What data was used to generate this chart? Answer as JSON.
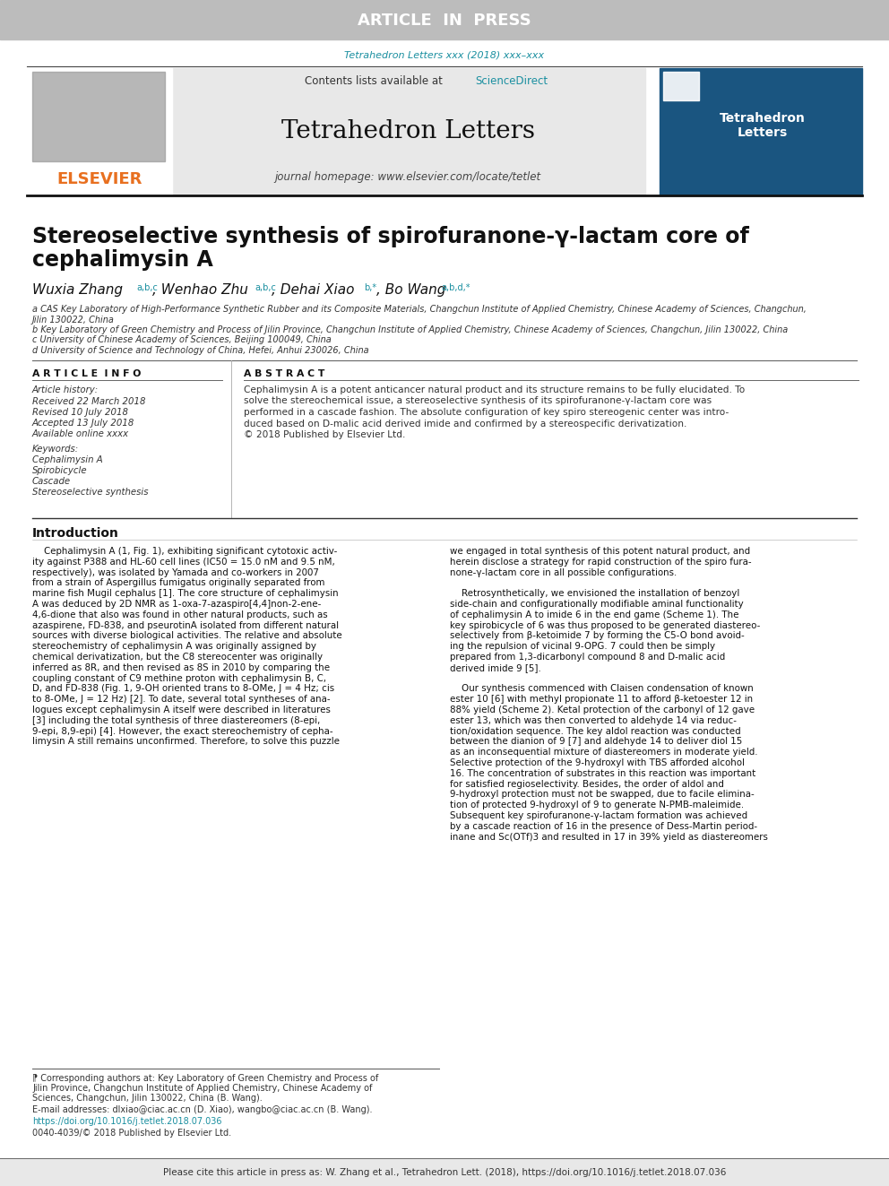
{
  "article_in_press_bg": "#c8c8c8",
  "article_in_press_text": "ARTICLE  IN  PRESS",
  "article_in_press_color": "#ffffff",
  "journal_ref_color": "#1a8fa0",
  "journal_ref": "Tetrahedron Letters xxx (2018) xxx–xxx",
  "header_bg": "#e8e8e8",
  "journal_title": "Tetrahedron Letters",
  "contents_text": "Contents lists available at ",
  "sciencedirect_text": "ScienceDirect",
  "sciencedirect_color": "#e87020",
  "homepage_text": "journal homepage: www.elsevier.com/locate/tetlet",
  "elsevier_color": "#e87020",
  "paper_title_line1": "Stereoselective synthesis of spirofuranone-γ-lactam core of",
  "paper_title_line2": "cephalimysin A",
  "author1_name": "Wuxia Zhang",
  "author1_super": "a,b,c",
  "author2_name": ", Wenhao Zhu",
  "author2_super": "a,b,c",
  "author3_name": ", Dehai Xiao",
  "author3_super": "b,*",
  "author4_name": ", Bo Wang",
  "author4_super": "a,b,d,*",
  "affiliation_a": "a CAS Key Laboratory of High-Performance Synthetic Rubber and its Composite Materials, Changchun Institute of Applied Chemistry, Chinese Academy of Sciences, Changchun,",
  "affiliation_a2": "Jilin 130022, China",
  "affiliation_b": "b Key Laboratory of Green Chemistry and Process of Jilin Province, Changchun Institute of Applied Chemistry, Chinese Academy of Sciences, Changchun, Jilin 130022, China",
  "affiliation_c": "c University of Chinese Academy of Sciences, Beijing 100049, China",
  "affiliation_d": "d University of Science and Technology of China, Hefei, Anhui 230026, China",
  "article_info_title": "A R T I C L E  I N F O",
  "abstract_title": "A B S T R A C T",
  "article_history": "Article history:",
  "received": "Received 22 March 2018",
  "revised": "Revised 10 July 2018",
  "accepted": "Accepted 13 July 2018",
  "available": "Available online xxxx",
  "keywords_title": "Keywords:",
  "keyword1": "Cephalimysin A",
  "keyword2": "Spirobicycle",
  "keyword3": "Cascade",
  "keyword4": "Stereoselective synthesis",
  "abstract_lines": [
    "Cephalimysin A is a potent anticancer natural product and its structure remains to be fully elucidated. To",
    "solve the stereochemical issue, a stereoselective synthesis of its spirofuranone-γ-lactam core was",
    "performed in a cascade fashion. The absolute configuration of key spiro stereogenic center was intro-",
    "duced based on D-malic acid derived imide and confirmed by a stereospecific derivatization.",
    "© 2018 Published by Elsevier Ltd."
  ],
  "intro_title": "Introduction",
  "intro_col1_lines": [
    "    Cephalimysin A (1, Fig. 1), exhibiting significant cytotoxic activ-",
    "ity against P388 and HL-60 cell lines (IC50 = 15.0 nM and 9.5 nM,",
    "respectively), was isolated by Yamada and co-workers in 2007",
    "from a strain of Aspergillus fumigatus originally separated from",
    "marine fish Mugil cephalus [1]. The core structure of cephalimysin",
    "A was deduced by 2D NMR as 1-oxa-7-azaspiro[4,4]non-2-ene-",
    "4,6-dione that also was found in other natural products, such as",
    "azaspirene, FD-838, and pseurotinA isolated from different natural",
    "sources with diverse biological activities. The relative and absolute",
    "stereochemistry of cephalimysin A was originally assigned by",
    "chemical derivatization, but the C8 stereocenter was originally",
    "inferred as 8R, and then revised as 8S in 2010 by comparing the",
    "coupling constant of C9 methine proton with cephalimysin B, C,",
    "D, and FD-838 (Fig. 1, 9-OH oriented trans to 8-OMe, J = 4 Hz; cis",
    "to 8-OMe, J = 12 Hz) [2]. To date, several total syntheses of ana-",
    "logues except cephalimysin A itself were described in literatures",
    "[3] including the total synthesis of three diastereomers (8-epi,",
    "9-epi, 8,9-epi) [4]. However, the exact stereochemistry of cepha-",
    "limysin A still remains unconfirmed. Therefore, to solve this puzzle"
  ],
  "intro_col2_lines": [
    "we engaged in total synthesis of this potent natural product, and",
    "herein disclose a strategy for rapid construction of the spiro fura-",
    "none-γ-lactam core in all possible configurations.",
    "",
    "    Retrosynthetically, we envisioned the installation of benzoyl",
    "side-chain and configurationally modifiable aminal functionality",
    "of cephalimysin A to imide 6 in the end game (Scheme 1). The",
    "key spirobicycle of 6 was thus proposed to be generated diastereo-",
    "selectively from β-ketoimide 7 by forming the C5-O bond avoid-",
    "ing the repulsion of vicinal 9-OPG. 7 could then be simply",
    "prepared from 1,3-dicarbonyl compound 8 and D-malic acid",
    "derived imide 9 [5].",
    "",
    "    Our synthesis commenced with Claisen condensation of known",
    "ester 10 [6] with methyl propionate 11 to afford β-ketoester 12 in",
    "88% yield (Scheme 2). Ketal protection of the carbonyl of 12 gave",
    "ester 13, which was then converted to aldehyde 14 via reduc-",
    "tion/oxidation sequence. The key aldol reaction was conducted",
    "between the dianion of 9 [7] and aldehyde 14 to deliver diol 15",
    "as an inconsequential mixture of diastereomers in moderate yield.",
    "Selective protection of the 9-hydroxyl with TBS afforded alcohol",
    "16. The concentration of substrates in this reaction was important",
    "for satisfied regioselectivity. Besides, the order of aldol and",
    "9-hydroxyl protection must not be swapped, due to facile elimina-",
    "tion of protected 9-hydroxyl of 9 to generate N-PMB-maleimide.",
    "Subsequent key spirofuranone-γ-lactam formation was achieved",
    "by a cascade reaction of 16 in the presence of Dess-Martin period-",
    "inane and Sc(OTf)3 and resulted in 17 in 39% yield as diastereomers"
  ],
  "footnote_lines": [
    "⁋ Corresponding authors at: Key Laboratory of Green Chemistry and Process of",
    "Jilin Province, Changchun Institute of Applied Chemistry, Chinese Academy of",
    "Sciences, Changchun, Jilin 130022, China (B. Wang)."
  ],
  "email_text": "E-mail addresses: dlxiao@ciac.ac.cn (D. Xiao), wangbo@ciac.ac.cn (B. Wang).",
  "doi_text": "https://doi.org/10.1016/j.tetlet.2018.07.036",
  "issn_text": "0040-4039/© 2018 Published by Elsevier Ltd.",
  "bottom_bar_text": "Please cite this article in press as: W. Zhang et al., Tetrahedron Lett. (2018), https://doi.org/10.1016/j.tetlet.2018.07.036",
  "teal_color": "#1a8fa0",
  "orange_color": "#e87020"
}
